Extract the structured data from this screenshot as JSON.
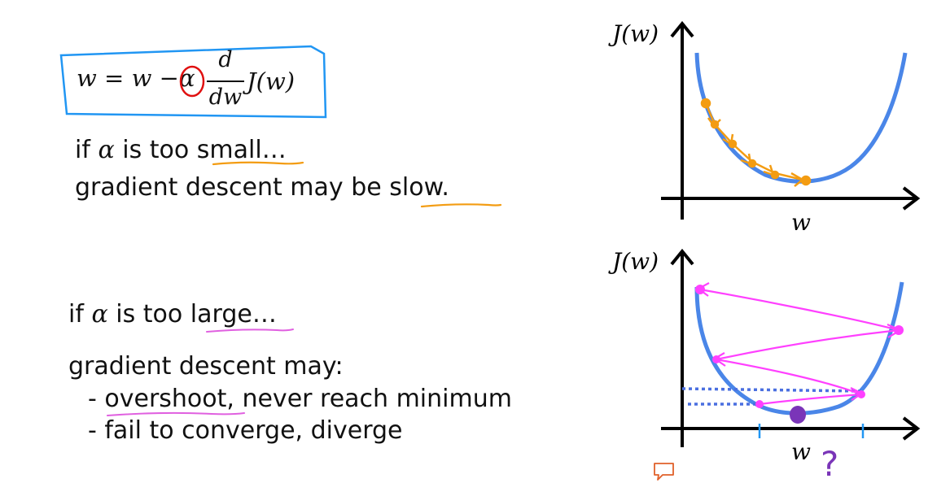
{
  "formula": {
    "lhs": "w",
    "eq": "=",
    "rhs_w": "w",
    "minus": "−",
    "alpha": "α",
    "frac_num": "d",
    "frac_den": "dw",
    "cost": "J(w)"
  },
  "small_case": {
    "line1_prefix": "if",
    "alpha": "α",
    "line1_mid": "is too",
    "line1_key": "small",
    "line1_suffix": "…",
    "line2_prefix": "gradient descent may be",
    "line2_key": "slow",
    "line2_suffix": "."
  },
  "large_case": {
    "line1_prefix": "if",
    "alpha": "α",
    "line1_mid": "is too",
    "line1_key": "large",
    "line1_suffix": "…",
    "line2": "gradient descent may:",
    "bullet1_dash": "-",
    "bullet1_key": "overshoot",
    "bullet1_rest": ", never reach minimum",
    "bullet2": "- fail to converge, diverge"
  },
  "plot_top": {
    "ylabel": "J(w)",
    "xlabel": "w"
  },
  "plot_bottom": {
    "ylabel": "J(w)",
    "xlabel": "w",
    "question": "?"
  },
  "colors": {
    "box": "#2196f3",
    "curve": "#4a86e8",
    "orange": "#f39c12",
    "magenta": "#ff40ff",
    "red": "#e01010",
    "purple": "#7a35b8",
    "dotted": "#4a6fe0"
  },
  "icons": {
    "comment": "comment-icon"
  }
}
